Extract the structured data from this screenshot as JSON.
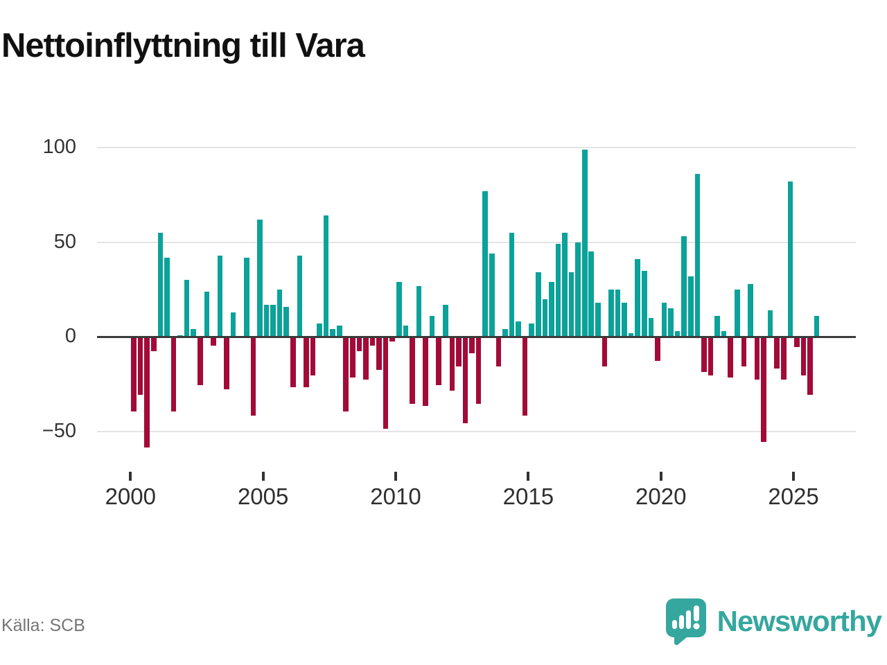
{
  "header": {
    "title": "Nettoinflyttning till Vara"
  },
  "footer": {
    "source_label": "Källa: SCB",
    "brand": {
      "name": "Newsworthy",
      "logo_icon": "speech-bubble-bar-chart-exclamation",
      "color": "#35a79e"
    }
  },
  "chart_data": {
    "type": "bar",
    "title": "Nettoinflyttning till Vara",
    "xlabel": "",
    "ylabel": "",
    "frequency": "quarterly",
    "grid": true,
    "legend": false,
    "y_axis": {
      "tick_values": [
        100,
        50,
        0,
        -50
      ],
      "tick_labels": [
        "100",
        "50",
        "0",
        "−50"
      ],
      "range": [
        -75,
        112
      ]
    },
    "x_axis": {
      "tick_years": [
        2000,
        2005,
        2010,
        2015,
        2020,
        2025
      ],
      "tick_labels": [
        "2000",
        "2005",
        "2010",
        "2015",
        "2020",
        "2025"
      ]
    },
    "colors": {
      "positive": "#0ba29a",
      "negative": "#a30a38",
      "zero_line": "#3b3b3b",
      "grid": "#e4e4e4"
    },
    "points": [
      [
        "2000Q1",
        -39
      ],
      [
        "2000Q2",
        -30
      ],
      [
        "2000Q3",
        -58
      ],
      [
        "2000Q4",
        -7
      ],
      [
        "2001Q1",
        55
      ],
      [
        "2001Q2",
        42
      ],
      [
        "2001Q3",
        -39
      ],
      [
        "2001Q4",
        1
      ],
      [
        "2002Q1",
        30
      ],
      [
        "2002Q2",
        4
      ],
      [
        "2002Q3",
        -25
      ],
      [
        "2002Q4",
        24
      ],
      [
        "2003Q1",
        -4
      ],
      [
        "2003Q2",
        43
      ],
      [
        "2003Q3",
        -27
      ],
      [
        "2003Q4",
        13
      ],
      [
        "2004Q1",
        0
      ],
      [
        "2004Q2",
        42
      ],
      [
        "2004Q3",
        -41
      ],
      [
        "2004Q4",
        62
      ],
      [
        "2005Q1",
        17
      ],
      [
        "2005Q2",
        17
      ],
      [
        "2005Q3",
        25
      ],
      [
        "2005Q4",
        16
      ],
      [
        "2006Q1",
        -26
      ],
      [
        "2006Q2",
        43
      ],
      [
        "2006Q3",
        -26
      ],
      [
        "2006Q4",
        -20
      ],
      [
        "2007Q1",
        7
      ],
      [
        "2007Q2",
        64
      ],
      [
        "2007Q3",
        4
      ],
      [
        "2007Q4",
        6
      ],
      [
        "2008Q1",
        -39
      ],
      [
        "2008Q2",
        -21
      ],
      [
        "2008Q3",
        -7
      ],
      [
        "2008Q4",
        -22
      ],
      [
        "2009Q1",
        -4
      ],
      [
        "2009Q2",
        -17
      ],
      [
        "2009Q3",
        -48
      ],
      [
        "2009Q4",
        -2
      ],
      [
        "2010Q1",
        29
      ],
      [
        "2010Q2",
        6
      ],
      [
        "2010Q3",
        -35
      ],
      [
        "2010Q4",
        27
      ],
      [
        "2011Q1",
        -36
      ],
      [
        "2011Q2",
        11
      ],
      [
        "2011Q3",
        -25
      ],
      [
        "2011Q4",
        17
      ],
      [
        "2012Q1",
        -28
      ],
      [
        "2012Q2",
        -15
      ],
      [
        "2012Q3",
        -45
      ],
      [
        "2012Q4",
        -8
      ],
      [
        "2013Q1",
        -35
      ],
      [
        "2013Q2",
        77
      ],
      [
        "2013Q3",
        44
      ],
      [
        "2013Q4",
        -15
      ],
      [
        "2014Q1",
        4
      ],
      [
        "2014Q2",
        55
      ],
      [
        "2014Q3",
        8
      ],
      [
        "2014Q4",
        -41
      ],
      [
        "2015Q1",
        7
      ],
      [
        "2015Q2",
        34
      ],
      [
        "2015Q3",
        20
      ],
      [
        "2015Q4",
        29
      ],
      [
        "2016Q1",
        49
      ],
      [
        "2016Q2",
        55
      ],
      [
        "2016Q3",
        34
      ],
      [
        "2016Q4",
        50
      ],
      [
        "2017Q1",
        99
      ],
      [
        "2017Q2",
        45
      ],
      [
        "2017Q3",
        18
      ],
      [
        "2017Q4",
        -15
      ],
      [
        "2018Q1",
        25
      ],
      [
        "2018Q2",
        25
      ],
      [
        "2018Q3",
        18
      ],
      [
        "2018Q4",
        2
      ],
      [
        "2019Q1",
        41
      ],
      [
        "2019Q2",
        35
      ],
      [
        "2019Q3",
        10
      ],
      [
        "2019Q4",
        -12
      ],
      [
        "2020Q1",
        18
      ],
      [
        "2020Q2",
        15
      ],
      [
        "2020Q3",
        3
      ],
      [
        "2020Q4",
        53
      ],
      [
        "2021Q1",
        32
      ],
      [
        "2021Q2",
        86
      ],
      [
        "2021Q3",
        -18
      ],
      [
        "2021Q4",
        -20
      ],
      [
        "2022Q1",
        11
      ],
      [
        "2022Q2",
        3
      ],
      [
        "2022Q3",
        -21
      ],
      [
        "2022Q4",
        25
      ],
      [
        "2023Q1",
        -15
      ],
      [
        "2023Q2",
        28
      ],
      [
        "2023Q3",
        -22
      ],
      [
        "2023Q4",
        -55
      ],
      [
        "2024Q1",
        14
      ],
      [
        "2024Q2",
        -16
      ],
      [
        "2024Q3",
        -22
      ],
      [
        "2024Q4",
        82
      ],
      [
        "2025Q1",
        -5
      ],
      [
        "2025Q2",
        -20
      ],
      [
        "2025Q3",
        -30
      ],
      [
        "2025Q4",
        11
      ]
    ]
  }
}
